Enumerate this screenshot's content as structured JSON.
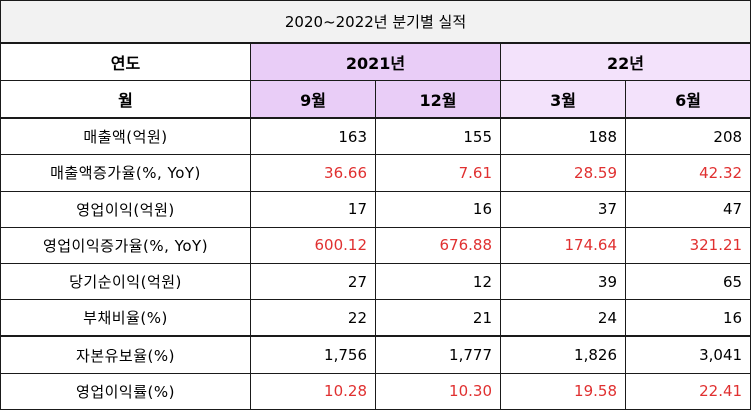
{
  "title": "2020~2022년 분기별 실적",
  "header": {
    "year_label": "연도",
    "month_label": "월",
    "group_2021": "2021년",
    "group_22": "22년",
    "months": [
      "9월",
      "12월",
      "3월",
      "6월"
    ]
  },
  "colors": {
    "header_2021": "#e9cdf7",
    "header_22": "#f3e2fb",
    "growth_text": "#e03030",
    "title_bg": "#f2f2f2"
  },
  "rows": [
    {
      "label": "매출액(억원)",
      "values": [
        "163",
        "155",
        "188",
        "208"
      ]
    },
    {
      "label": "매출액증가율(%, YoY)",
      "values": [
        "36.66",
        "7.61",
        "28.59",
        "42.32"
      ]
    },
    {
      "label": "영업이익(억원)",
      "values": [
        "17",
        "16",
        "37",
        "47"
      ]
    },
    {
      "label": "영업이익증가율(%, YoY)",
      "values": [
        "600.12",
        "676.88",
        "174.64",
        "321.21"
      ]
    },
    {
      "label": "당기순이익(억원)",
      "values": [
        "27",
        "12",
        "39",
        "65"
      ]
    },
    {
      "label": "부채비율(%)",
      "values": [
        "22",
        "21",
        "24",
        "16"
      ]
    },
    {
      "label": "자본유보율(%)",
      "values": [
        "1,756",
        "1,777",
        "1,826",
        "3,041"
      ]
    },
    {
      "label": "영업이익률(%)",
      "values": [
        "10.28",
        "10.30",
        "19.58",
        "22.41"
      ]
    }
  ]
}
